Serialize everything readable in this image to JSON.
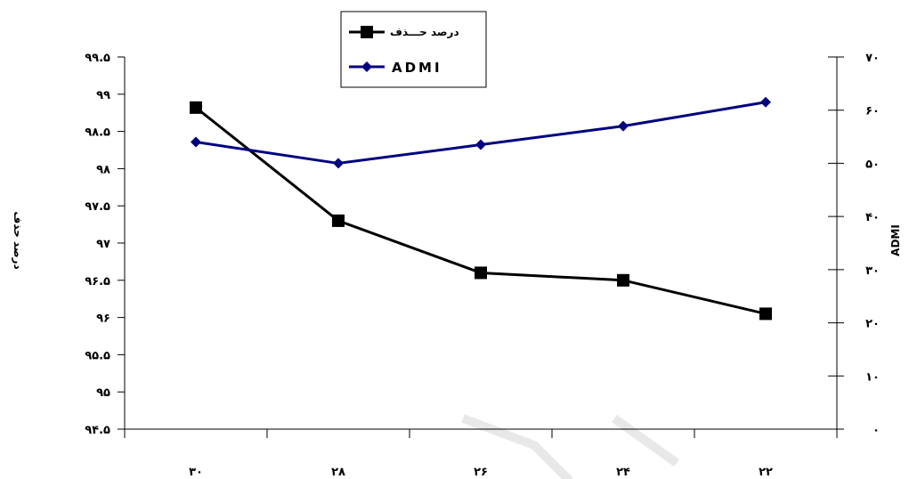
{
  "chart_data": {
    "type": "line",
    "categories": [
      "۳۰",
      "۲۸",
      "۲۶",
      "۲۴",
      "۲۲"
    ],
    "y_left": {
      "label": "درصد حذف",
      "ylim": [
        94.5,
        99.5
      ],
      "ticks": [
        "۹۹.۵",
        "۹۹",
        "۹۸.۵",
        "۹۸",
        "۹۷.۵",
        "۹۷",
        "۹۶.۵",
        "۹۶",
        "۹۵.۵",
        "۹۵",
        "۹۴.۵"
      ]
    },
    "y_right": {
      "label": "ADMI",
      "ylim": [
        0,
        70
      ],
      "ticks": [
        "۷۰",
        "۶۰",
        "۵۰",
        "۴۰",
        "۳۰",
        "۲۰",
        "۱۰",
        "۰"
      ]
    },
    "series": [
      {
        "name": "درصد حـــذف",
        "axis": "left",
        "color": "#000000",
        "marker": "square",
        "values": [
          98.82,
          97.3,
          96.6,
          96.5,
          96.05
        ]
      },
      {
        "name": "ADMI",
        "axis": "right",
        "color": "#000080",
        "marker": "diamond",
        "values": [
          54,
          50,
          53.5,
          57,
          61.5
        ]
      }
    ],
    "legend": {
      "placement": "top-center"
    },
    "grid": false
  }
}
